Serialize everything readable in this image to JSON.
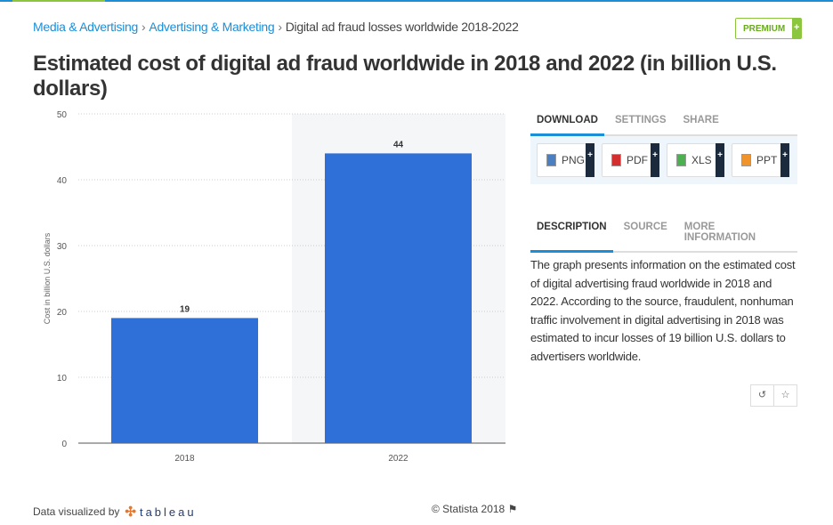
{
  "breadcrumb": {
    "items": [
      "Media & Advertising",
      "Advertising & Marketing"
    ],
    "current": "Digital ad fraud losses worldwide 2018-2022",
    "separator": "›"
  },
  "premium": {
    "label": "PREMIUM",
    "plus": "+"
  },
  "title": "Estimated cost of digital ad fraud worldwide in 2018 and 2022 (in billion U.S. dollars)",
  "download_tabs": [
    "DOWNLOAD",
    "SETTINGS",
    "SHARE"
  ],
  "downloads": [
    {
      "label": "PNG",
      "color": "#4a7fc1"
    },
    {
      "label": "PDF",
      "color": "#d32f2f"
    },
    {
      "label": "XLS",
      "color": "#4caf50"
    },
    {
      "label": "PPT",
      "color": "#f0932b"
    }
  ],
  "plus": "+",
  "info_tabs": [
    "DESCRIPTION",
    "SOURCE",
    "MORE INFORMATION"
  ],
  "description": "The graph presents information on the estimated cost of digital advertising fraud worldwide in 2018 and 2022. According to the source, fraudulent, nonhuman traffic involvement in digital advertising in 2018 was estimated to incur losses of 19 billion U.S. dollars to advertisers worldwide.",
  "icons": {
    "history": "↺",
    "star": "☆",
    "flag": "⚑"
  },
  "footer": {
    "visualized": "Data visualized by",
    "tableau": "tableau",
    "tableau_mark": "✣",
    "copyright": "© Statista 2018"
  },
  "chart_data": {
    "type": "bar",
    "title": "Estimated cost of digital ad fraud worldwide in 2018 and 2022 (in billion U.S. dollars)",
    "categories": [
      "2018",
      "2022"
    ],
    "values": [
      19,
      44
    ],
    "xlabel": "",
    "ylabel": "Cost in billion U.S. dollars",
    "ylim": [
      0,
      50
    ],
    "yticks": [
      0,
      10,
      20,
      30,
      40,
      50
    ],
    "grid": true,
    "bar_color": "#2e6fd8",
    "highlight_category": "2022"
  }
}
